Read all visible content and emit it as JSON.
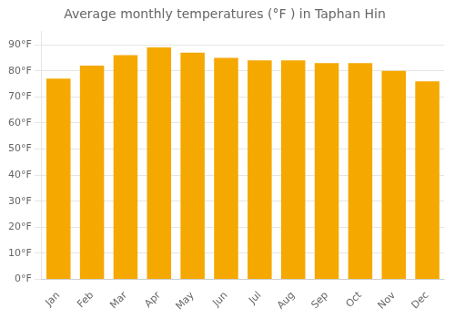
{
  "chart_data": {
    "type": "bar",
    "title": "Average monthly temperatures (°F ) in Taphan Hin",
    "categories": [
      "Jan",
      "Feb",
      "Mar",
      "Apr",
      "May",
      "Jun",
      "Jul",
      "Aug",
      "Sep",
      "Oct",
      "Nov",
      "Dec"
    ],
    "values": [
      77,
      82,
      86,
      89,
      87,
      85,
      84,
      84,
      83,
      83,
      80,
      76
    ],
    "color": "#F5A800",
    "ylim": [
      0,
      95
    ],
    "yticks": [
      {
        "value": 0,
        "label": "0°F"
      },
      {
        "value": 10,
        "label": "10°F"
      },
      {
        "value": 20,
        "label": "20°F"
      },
      {
        "value": 30,
        "label": "30°F"
      },
      {
        "value": 40,
        "label": "40°F"
      },
      {
        "value": 50,
        "label": "50°F"
      },
      {
        "value": 60,
        "label": "60°F"
      },
      {
        "value": 70,
        "label": "70°F"
      },
      {
        "value": 80,
        "label": "80°F"
      },
      {
        "value": 90,
        "label": "90°F"
      }
    ],
    "grid": true
  }
}
